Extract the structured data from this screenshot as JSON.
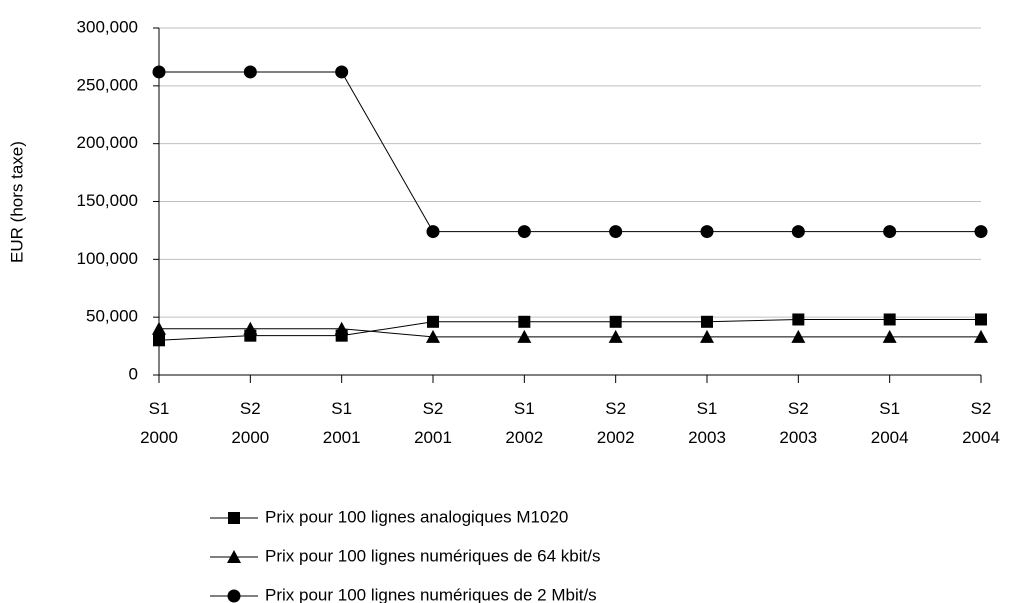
{
  "chart_data": {
    "type": "line",
    "y_label": "EUR (hors taxe)",
    "categories": [
      "S1\n2000",
      "S2\n2000",
      "S1\n2001",
      "S2\n2001",
      "S1\n2002",
      "S2\n2002",
      "S1\n2003",
      "S2\n2003",
      "S1\n2004",
      "S2\n2004"
    ],
    "series": [
      {
        "name": "Prix pour 100 lignes analogiques M1020",
        "color": "#000000",
        "marker": "square",
        "values": [
          30000,
          34000,
          34000,
          46000,
          46000,
          46000,
          46000,
          48000,
          48000,
          48000
        ]
      },
      {
        "name": "Prix pour 100 lignes numériques de 64 kbit/s",
        "color": "#000000",
        "marker": "triangle",
        "values": [
          40000,
          40000,
          40000,
          33000,
          33000,
          33000,
          33000,
          33000,
          33000,
          33000
        ]
      },
      {
        "name": "Prix pour 100 lignes numériques de 2 Mbit/s",
        "color": "#000000",
        "marker": "circle",
        "values": [
          262000,
          262000,
          262000,
          124000,
          124000,
          124000,
          124000,
          124000,
          124000,
          124000
        ]
      }
    ],
    "ylim": [
      0,
      300000
    ],
    "yticks": [
      0,
      {
        "value": 50000,
        "label": "50,000"
      },
      {
        "value": 100000,
        "label": "100,000"
      },
      {
        "value": 150000,
        "label": "150,000"
      },
      {
        "value": 200000,
        "label": "200,000"
      },
      {
        "value": 250000,
        "label": "250,000"
      },
      {
        "value": 300000,
        "label": "300,000"
      }
    ],
    "grid": true,
    "legend": "bottom"
  }
}
